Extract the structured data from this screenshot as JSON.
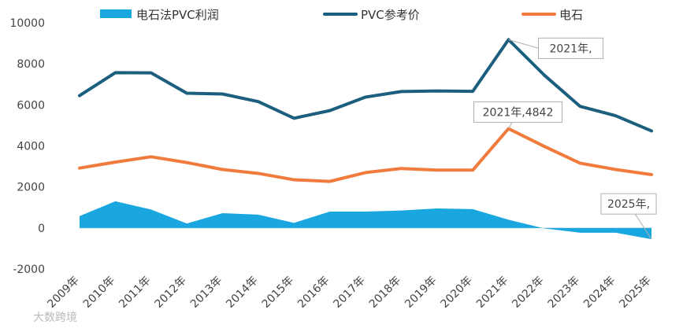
{
  "chart_data": {
    "type": "line",
    "categories": [
      "2009年",
      "2010年",
      "2011年",
      "2012年",
      "2013年",
      "2014年",
      "2015年",
      "2016年",
      "2017年",
      "2018年",
      "2019年",
      "2020年",
      "2021年",
      "2022年",
      "2023年",
      "2024年",
      "2025年"
    ],
    "series": [
      {
        "name": "电石法PVC利润",
        "kind": "area",
        "color": "#1aa7e0",
        "values": [
          580,
          1300,
          900,
          220,
          720,
          650,
          250,
          800,
          800,
          850,
          950,
          920,
          400,
          -20,
          -230,
          -230,
          -550
        ]
      },
      {
        "name": "PVC参考价",
        "kind": "line",
        "color": "#1b5e7e",
        "values": [
          6450,
          7570,
          7560,
          6570,
          6530,
          6160,
          5350,
          5720,
          6380,
          6650,
          6680,
          6660,
          9180,
          7450,
          5930,
          5470,
          4730
        ]
      },
      {
        "name": "电石",
        "kind": "line",
        "color": "#f07b3c",
        "values": [
          2920,
          3210,
          3470,
          3190,
          2850,
          2660,
          2350,
          2270,
          2700,
          2900,
          2820,
          2820,
          4842,
          3980,
          3160,
          2850,
          2600
        ]
      }
    ],
    "ylim": [
      -2000,
      10000
    ],
    "yticks": [
      -2000,
      0,
      2000,
      4000,
      6000,
      8000,
      10000
    ],
    "grid": false,
    "legend_position": "top",
    "annotations": [
      {
        "text": "2021年,",
        "series": 1,
        "index": 12
      },
      {
        "text": "2021年,4842",
        "series": 2,
        "index": 12
      },
      {
        "text": "2025年,",
        "series": 0,
        "index": 16
      }
    ]
  },
  "watermark": "大数跨境"
}
